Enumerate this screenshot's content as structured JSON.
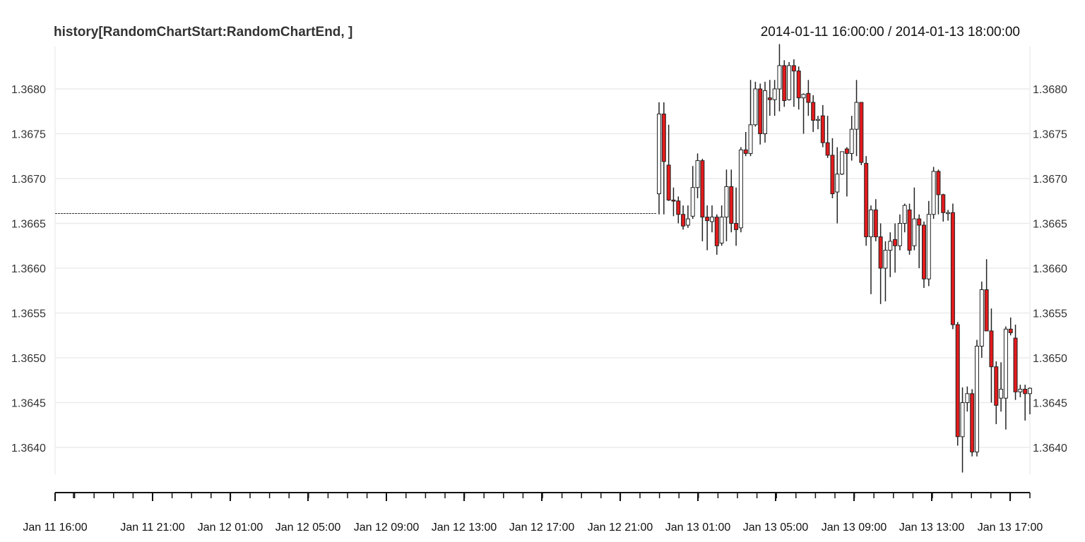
{
  "chart_data": {
    "type": "candlestick",
    "title": "history[RandomChartStart:RandomChartEnd, ]",
    "subtitle": "2014-01-11 16:00:00 / 2014-01-13 18:00:00",
    "ylim": [
      1.36372,
      1.36849
    ],
    "y_ticks": [
      "1.3640",
      "1.3645",
      "1.3650",
      "1.3655",
      "1.3660",
      "1.3665",
      "1.3670",
      "1.3675",
      "1.3680"
    ],
    "x_tick_labels": [
      "Jan 11 16:00",
      "Jan 11 21:00",
      "Jan 12 01:00",
      "Jan 12 05:00",
      "Jan 12 09:00",
      "Jan 12 13:00",
      "Jan 12 17:00",
      "Jan 12 21:00",
      "Jan 13 01:00",
      "Jan 13 05:00",
      "Jan 13 09:00",
      "Jan 13 13:00",
      "Jan 13 17:00"
    ],
    "grid": true,
    "up_color": "#ffffff",
    "down_color": "#e31a1c",
    "flat_level": 1.36661,
    "candles": [
      {
        "o": 1.36683,
        "h": 1.36785,
        "l": 1.3666,
        "c": 1.36772
      },
      {
        "o": 1.36772,
        "h": 1.36785,
        "l": 1.3666,
        "c": 1.36719
      },
      {
        "o": 1.36715,
        "h": 1.3676,
        "l": 1.36675,
        "c": 1.36676
      },
      {
        "o": 1.36676,
        "h": 1.3669,
        "l": 1.36658,
        "c": 1.36675
      },
      {
        "o": 1.36675,
        "h": 1.3668,
        "l": 1.3665,
        "c": 1.3666
      },
      {
        "o": 1.3666,
        "h": 1.3667,
        "l": 1.36643,
        "c": 1.36647
      },
      {
        "o": 1.36648,
        "h": 1.3667,
        "l": 1.36645,
        "c": 1.36655
      },
      {
        "o": 1.36658,
        "h": 1.36714,
        "l": 1.36655,
        "c": 1.3669
      },
      {
        "o": 1.3669,
        "h": 1.36728,
        "l": 1.36678,
        "c": 1.3672
      },
      {
        "o": 1.3672,
        "h": 1.36722,
        "l": 1.3663,
        "c": 1.36657
      },
      {
        "o": 1.36657,
        "h": 1.3667,
        "l": 1.3662,
        "c": 1.36653
      },
      {
        "o": 1.36652,
        "h": 1.3667,
        "l": 1.3664,
        "c": 1.36657
      },
      {
        "o": 1.36657,
        "h": 1.3666,
        "l": 1.36615,
        "c": 1.36625
      },
      {
        "o": 1.36628,
        "h": 1.3667,
        "l": 1.36625,
        "c": 1.36657
      },
      {
        "o": 1.36657,
        "h": 1.3671,
        "l": 1.3663,
        "c": 1.36691
      },
      {
        "o": 1.36691,
        "h": 1.3671,
        "l": 1.3664,
        "c": 1.3665
      },
      {
        "o": 1.3665,
        "h": 1.3669,
        "l": 1.36625,
        "c": 1.36643
      },
      {
        "o": 1.36645,
        "h": 1.36735,
        "l": 1.3664,
        "c": 1.36732
      },
      {
        "o": 1.36732,
        "h": 1.36752,
        "l": 1.36725,
        "c": 1.36728
      },
      {
        "o": 1.36728,
        "h": 1.3681,
        "l": 1.36725,
        "c": 1.3676
      },
      {
        "o": 1.3676,
        "h": 1.36808,
        "l": 1.36758,
        "c": 1.368
      },
      {
        "o": 1.368,
        "h": 1.36806,
        "l": 1.36738,
        "c": 1.3675
      },
      {
        "o": 1.3675,
        "h": 1.36808,
        "l": 1.3674,
        "c": 1.36798
      },
      {
        "o": 1.3679,
        "h": 1.3681,
        "l": 1.3677,
        "c": 1.36788
      },
      {
        "o": 1.36788,
        "h": 1.3681,
        "l": 1.3677,
        "c": 1.368
      },
      {
        "o": 1.368,
        "h": 1.3685,
        "l": 1.36775,
        "c": 1.36826
      },
      {
        "o": 1.36826,
        "h": 1.36832,
        "l": 1.3678,
        "c": 1.36787
      },
      {
        "o": 1.36788,
        "h": 1.3683,
        "l": 1.36787,
        "c": 1.36826
      },
      {
        "o": 1.36826,
        "h": 1.36833,
        "l": 1.3678,
        "c": 1.3682
      },
      {
        "o": 1.3682,
        "h": 1.36825,
        "l": 1.36777,
        "c": 1.3679
      },
      {
        "o": 1.3679,
        "h": 1.36795,
        "l": 1.3675,
        "c": 1.36794
      },
      {
        "o": 1.36795,
        "h": 1.3681,
        "l": 1.3677,
        "c": 1.36785
      },
      {
        "o": 1.36785,
        "h": 1.36793,
        "l": 1.36752,
        "c": 1.36765
      },
      {
        "o": 1.36765,
        "h": 1.3677,
        "l": 1.36755,
        "c": 1.36766
      },
      {
        "o": 1.3677,
        "h": 1.36782,
        "l": 1.36735,
        "c": 1.3674
      },
      {
        "o": 1.3674,
        "h": 1.3677,
        "l": 1.36723,
        "c": 1.36726
      },
      {
        "o": 1.36726,
        "h": 1.36745,
        "l": 1.36678,
        "c": 1.36683
      },
      {
        "o": 1.36685,
        "h": 1.36735,
        "l": 1.3665,
        "c": 1.36705
      },
      {
        "o": 1.36705,
        "h": 1.3673,
        "l": 1.36704,
        "c": 1.3673
      },
      {
        "o": 1.36733,
        "h": 1.36735,
        "l": 1.3668,
        "c": 1.36728
      },
      {
        "o": 1.36728,
        "h": 1.3677,
        "l": 1.3672,
        "c": 1.36755
      },
      {
        "o": 1.36755,
        "h": 1.3681,
        "l": 1.36725,
        "c": 1.36785
      },
      {
        "o": 1.36785,
        "h": 1.36785,
        "l": 1.36715,
        "c": 1.36718
      },
      {
        "o": 1.36717,
        "h": 1.36725,
        "l": 1.36625,
        "c": 1.36635
      },
      {
        "o": 1.36635,
        "h": 1.3667,
        "l": 1.36571,
        "c": 1.36665
      },
      {
        "o": 1.36665,
        "h": 1.36677,
        "l": 1.3663,
        "c": 1.36635
      },
      {
        "o": 1.36635,
        "h": 1.3665,
        "l": 1.3656,
        "c": 1.366
      },
      {
        "o": 1.366,
        "h": 1.3663,
        "l": 1.36563,
        "c": 1.3662
      },
      {
        "o": 1.3662,
        "h": 1.3664,
        "l": 1.3659,
        "c": 1.3663
      },
      {
        "o": 1.36632,
        "h": 1.3665,
        "l": 1.36595,
        "c": 1.36625
      },
      {
        "o": 1.36625,
        "h": 1.3666,
        "l": 1.3662,
        "c": 1.3665
      },
      {
        "o": 1.3665,
        "h": 1.36672,
        "l": 1.3664,
        "c": 1.3667
      },
      {
        "o": 1.36665,
        "h": 1.36672,
        "l": 1.36615,
        "c": 1.3662
      },
      {
        "o": 1.36625,
        "h": 1.3669,
        "l": 1.3662,
        "c": 1.36655
      },
      {
        "o": 1.36655,
        "h": 1.3666,
        "l": 1.366,
        "c": 1.36648
      },
      {
        "o": 1.36648,
        "h": 1.36652,
        "l": 1.36578,
        "c": 1.36588
      },
      {
        "o": 1.36588,
        "h": 1.36675,
        "l": 1.3658,
        "c": 1.3666
      },
      {
        "o": 1.3666,
        "h": 1.36713,
        "l": 1.36655,
        "c": 1.36708
      },
      {
        "o": 1.36708,
        "h": 1.3671,
        "l": 1.3666,
        "c": 1.36682
      },
      {
        "o": 1.36682,
        "h": 1.36683,
        "l": 1.36652,
        "c": 1.36662
      },
      {
        "o": 1.36662,
        "h": 1.36665,
        "l": 1.36653,
        "c": 1.36662
      },
      {
        "o": 1.36662,
        "h": 1.36672,
        "l": 1.36532,
        "c": 1.36537
      },
      {
        "o": 1.36537,
        "h": 1.3654,
        "l": 1.36402,
        "c": 1.36412
      },
      {
        "o": 1.36412,
        "h": 1.36467,
        "l": 1.36372,
        "c": 1.3645
      },
      {
        "o": 1.3645,
        "h": 1.36468,
        "l": 1.3644,
        "c": 1.3646
      },
      {
        "o": 1.3646,
        "h": 1.36465,
        "l": 1.3639,
        "c": 1.36395
      },
      {
        "o": 1.36395,
        "h": 1.3652,
        "l": 1.3639,
        "c": 1.36513
      },
      {
        "o": 1.36513,
        "h": 1.36585,
        "l": 1.365,
        "c": 1.36576
      },
      {
        "o": 1.36576,
        "h": 1.3661,
        "l": 1.3653,
        "c": 1.3653
      },
      {
        "o": 1.3653,
        "h": 1.36555,
        "l": 1.3645,
        "c": 1.3649
      },
      {
        "o": 1.3649,
        "h": 1.36496,
        "l": 1.36426,
        "c": 1.36447
      },
      {
        "o": 1.36455,
        "h": 1.36495,
        "l": 1.3644,
        "c": 1.36465
      },
      {
        "o": 1.36455,
        "h": 1.36535,
        "l": 1.3642,
        "c": 1.36532
      },
      {
        "o": 1.36532,
        "h": 1.36545,
        "l": 1.36525,
        "c": 1.36528
      },
      {
        "o": 1.36522,
        "h": 1.36537,
        "l": 1.36453,
        "c": 1.36462
      },
      {
        "o": 1.36462,
        "h": 1.3647,
        "l": 1.36456,
        "c": 1.36465
      },
      {
        "o": 1.36465,
        "h": 1.3647,
        "l": 1.3643,
        "c": 1.3646
      },
      {
        "o": 1.3646,
        "h": 1.36467,
        "l": 1.36437,
        "c": 1.36466
      }
    ]
  }
}
